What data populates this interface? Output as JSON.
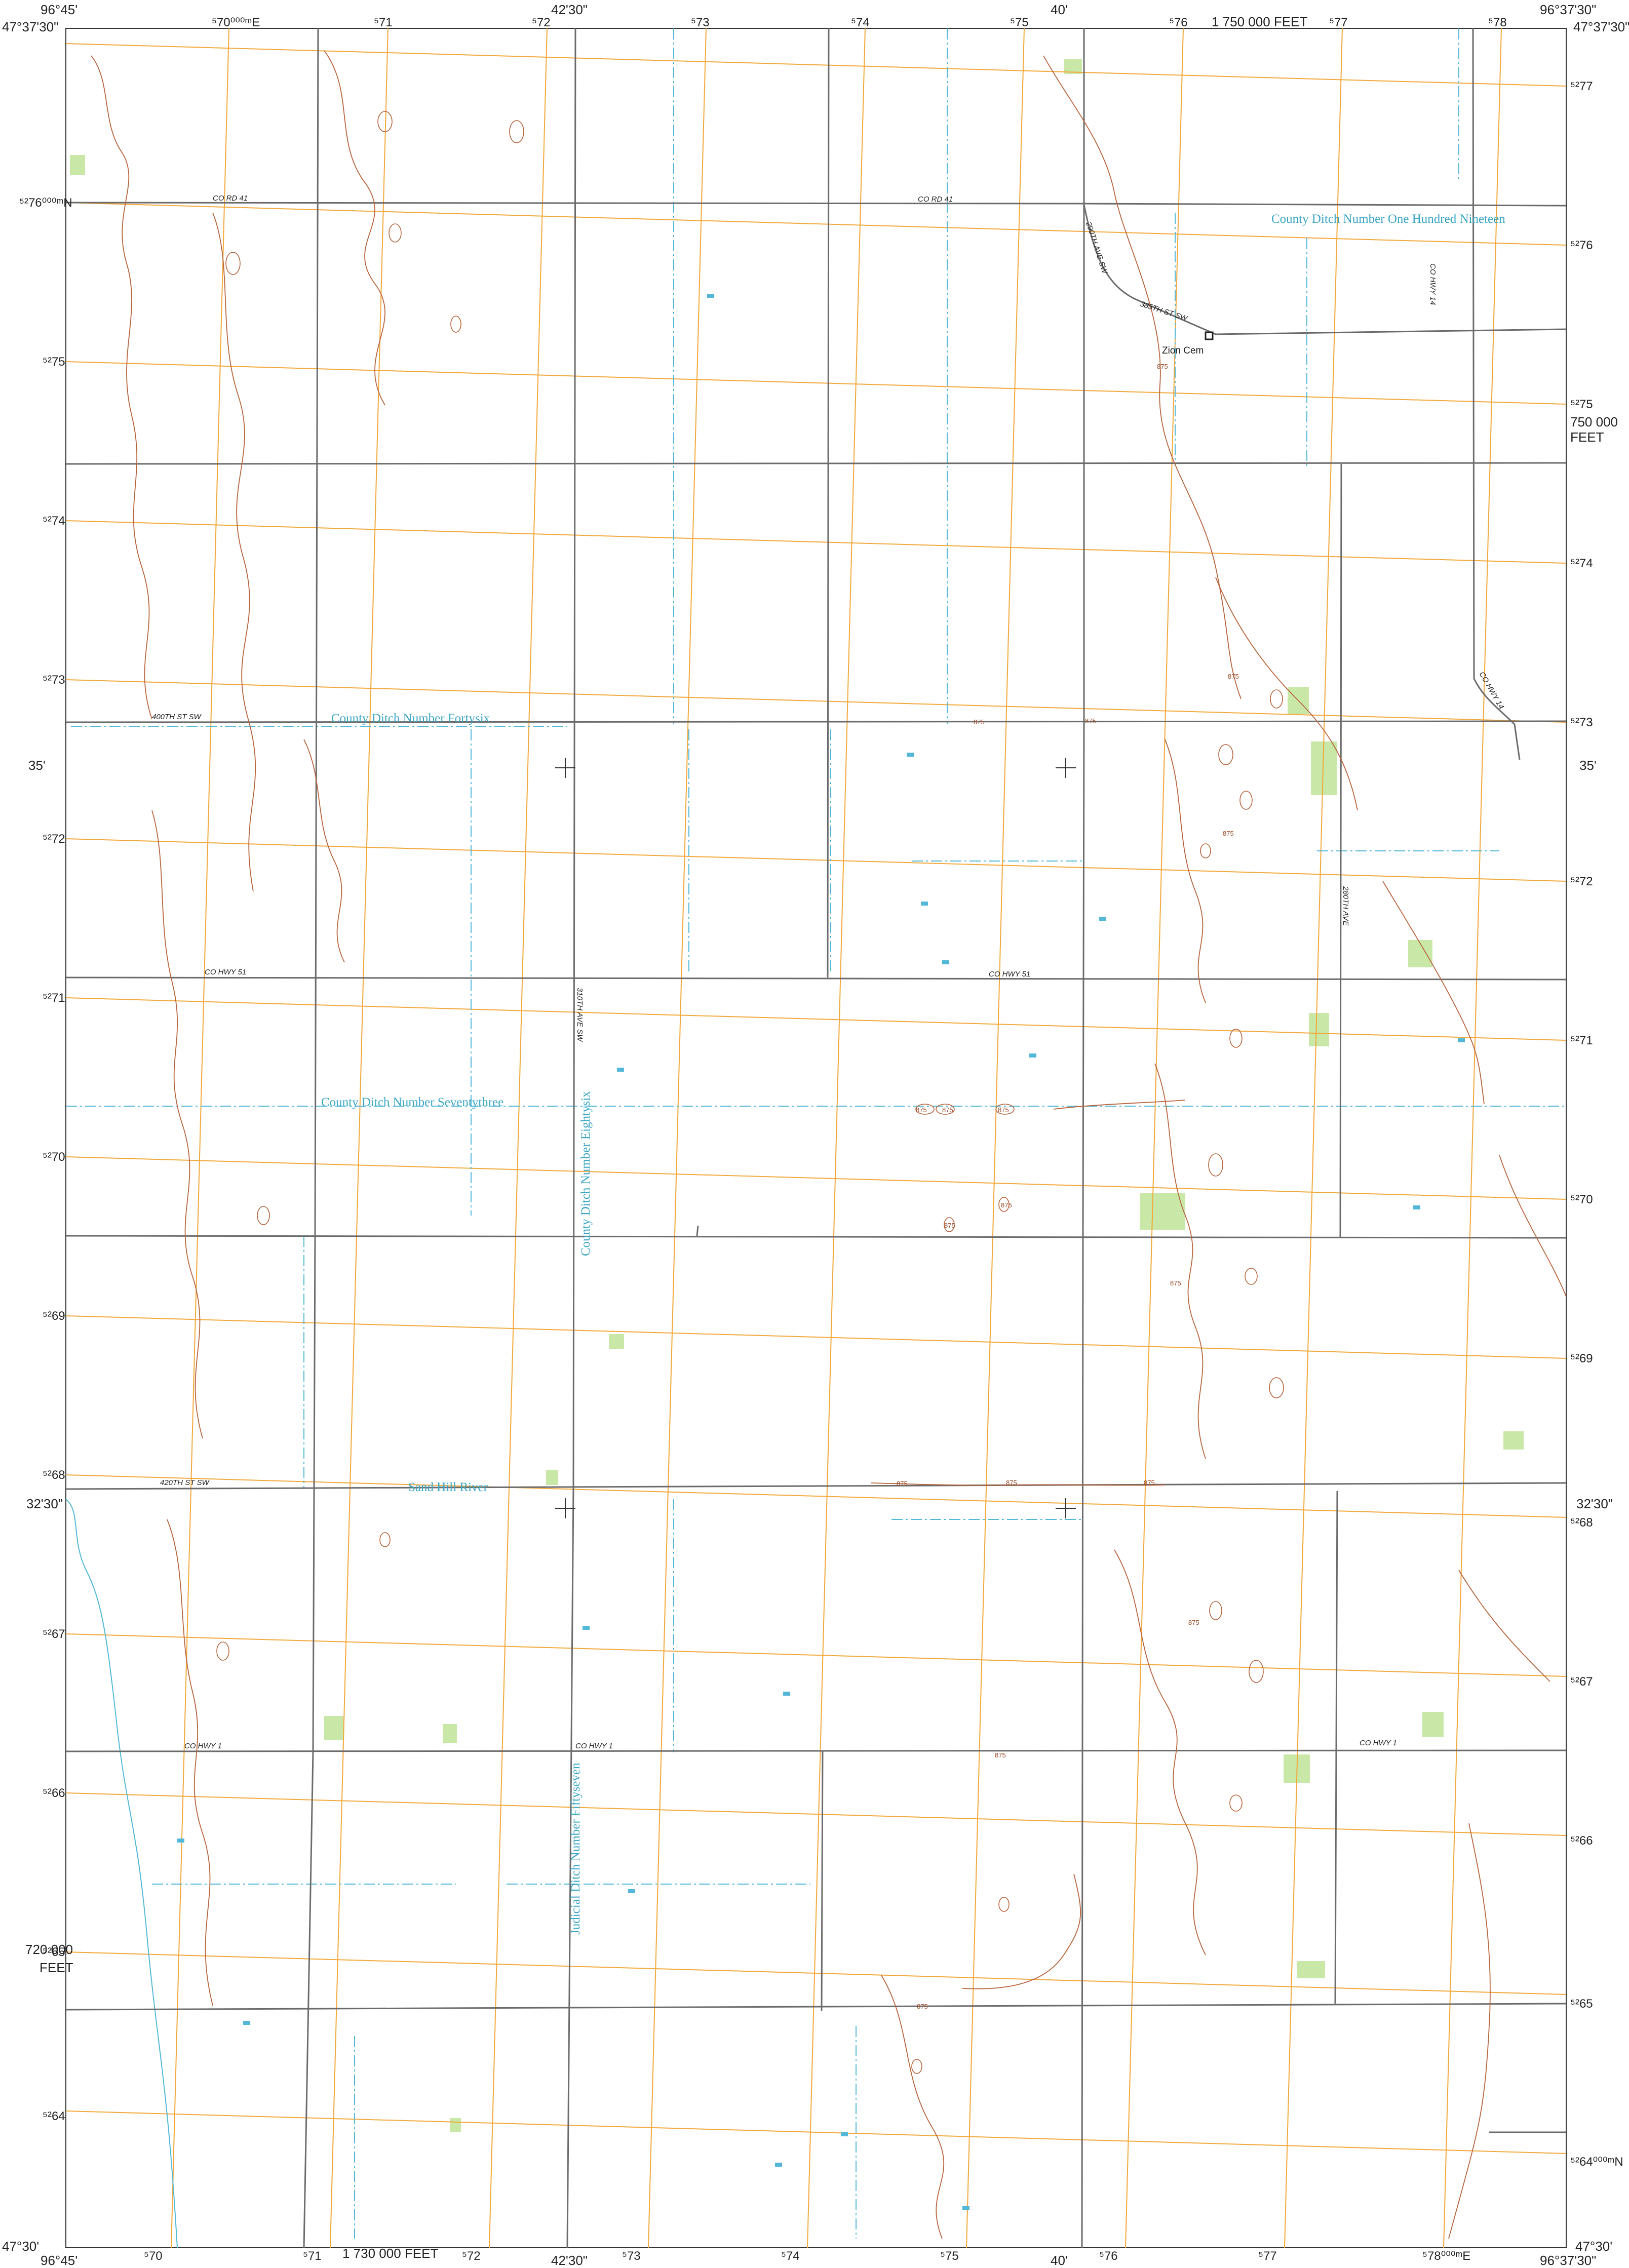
{
  "collar": {
    "top_left_lon": "96°45'",
    "top_left_lat": "47°37'30\"",
    "top_mid_lon": "42'30\"",
    "top_40": "40'",
    "top_right_lon": "96°37'30\"",
    "top_right_lat": "47°37'30\"",
    "bottom_left_lon": "96°45'",
    "bottom_left_lat": "47°30'",
    "bottom_mid_lon": "42'30\"",
    "bottom_40": "40'",
    "bottom_right_lon": "96°37'30\"",
    "bottom_right_lat": "47°30'",
    "lat_35": "35'",
    "lat_3230": "32'30\"",
    "feet_top": "1 750 000 FEET",
    "feet_bottom": "1 730 000 FEET",
    "feet_right_1": "750 000",
    "feet_right_2": "FEET",
    "feet_left_1": "720 000",
    "feet_left_2": "FEET"
  },
  "utm_top": [
    "⁵70⁰⁰⁰ᵐE",
    "⁵71",
    "⁵72",
    "⁵73",
    "⁵74",
    "⁵75",
    "⁵76",
    "⁵77",
    "⁵78"
  ],
  "utm_bottom": [
    "⁵70",
    "⁵71",
    "⁵72",
    "⁵73",
    "⁵74",
    "⁵75",
    "⁵76",
    "⁵77",
    "⁵78⁰⁰⁰ᵐE"
  ],
  "utm_left": [
    "⁵²76⁰⁰⁰ᵐN",
    "⁵²75",
    "⁵²74",
    "⁵²73",
    "⁵²72",
    "⁵²71",
    "⁵²70",
    "⁵²69",
    "⁵²68",
    "⁵²67",
    "⁵²66",
    "⁵²65",
    "⁵²64"
  ],
  "utm_right": [
    "⁵²77",
    "⁵²76",
    "⁵²75",
    "⁵²74",
    "⁵²73",
    "⁵²72",
    "⁵²71",
    "⁵²70",
    "⁵²69",
    "⁵²68",
    "⁵²67",
    "⁵²66",
    "⁵²65",
    "⁵²64⁰⁰⁰ᵐN"
  ],
  "roads": {
    "co_rd_41_a": "CO RD 41",
    "co_rd_41_b": "CO RD 41",
    "st_385": "385TH ST SW",
    "ave_290": "290TH AVE SW",
    "co_hwy_14_a": "CO HWY 14",
    "co_hwy_14_b": "CO HWY 14",
    "st_400": "400TH ST SW",
    "ave_280": "280TH AVE",
    "co_hwy_51_a": "CO HWY 51",
    "co_hwy_51_b": "CO HWY 51",
    "ave_310": "310TH AVE SW",
    "st_420": "420TH ST SW",
    "co_hwy_1_a": "CO HWY 1",
    "co_hwy_1_b": "CO HWY 1",
    "co_hwy_1_c": "CO HWY 1"
  },
  "water": {
    "ditch_119": "County Ditch Number One Hundred Nineteen",
    "ditch_46": "County Ditch Number Fortysix",
    "ditch_73": "County Ditch Number Seventythree",
    "ditch_86": "County Ditch Number Eightysix",
    "sand_hill": "Sand Hill River",
    "judicial_57": "Judicial Ditch Number Fiftyseven"
  },
  "places": {
    "zion": "Zion Cem"
  },
  "contour_value": "875",
  "colors": {
    "grid": "#f3a83a",
    "road": "#6b6b6b",
    "contour": "#b7643c",
    "water": "#53b8d8",
    "veg": "#c9e8a8",
    "text": "#222222"
  }
}
